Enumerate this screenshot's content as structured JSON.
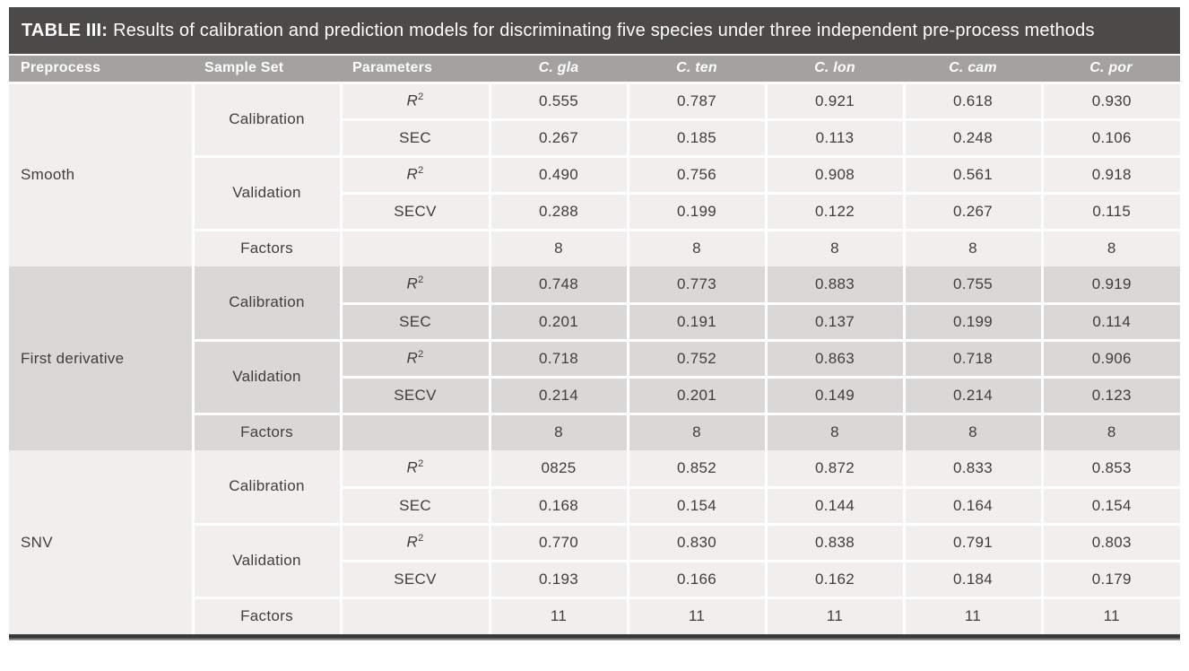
{
  "title": {
    "label": "TABLE III:",
    "text": "Results of calibration and prediction models for discriminating five species under three independent pre-process methods"
  },
  "header": {
    "columns": [
      {
        "label": "Preprocess"
      },
      {
        "label": "Sample Set"
      },
      {
        "label": "Parameters"
      },
      {
        "label": "C. gla"
      },
      {
        "label": "C. ten"
      },
      {
        "label": "C. lon"
      },
      {
        "label": "C. cam"
      },
      {
        "label": "C. por"
      }
    ]
  },
  "labels": {
    "calibration": "Calibration",
    "validation": "Validation",
    "factors": "Factors",
    "r_base": "R",
    "r_exp": "2",
    "sec": "SEC",
    "secv": "SECV"
  },
  "groups": [
    {
      "name": "Smooth",
      "shade": "light",
      "calibration": {
        "r2": [
          "0.555",
          "0.787",
          "0.921",
          "0.618",
          "0.930"
        ],
        "sec": [
          "0.267",
          "0.185",
          "0.113",
          "0.248",
          "0.106"
        ]
      },
      "validation": {
        "r2": [
          "0.490",
          "0.756",
          "0.908",
          "0.561",
          "0.918"
        ],
        "secv": [
          "0.288",
          "0.199",
          "0.122",
          "0.267",
          "0.115"
        ]
      },
      "factors": [
        "8",
        "8",
        "8",
        "8",
        "8"
      ]
    },
    {
      "name": "First derivative",
      "shade": "dark",
      "calibration": {
        "r2": [
          "0.748",
          "0.773",
          "0.883",
          "0.755",
          "0.919"
        ],
        "sec": [
          "0.201",
          "0.191",
          "0.137",
          "0.199",
          "0.114"
        ]
      },
      "validation": {
        "r2": [
          "0.718",
          "0.752",
          "0.863",
          "0.718",
          "0.906"
        ],
        "secv": [
          "0.214",
          "0.201",
          "0.149",
          "0.214",
          "0.123"
        ]
      },
      "factors": [
        "8",
        "8",
        "8",
        "8",
        "8"
      ]
    },
    {
      "name": "SNV",
      "shade": "light",
      "calibration": {
        "r2": [
          "0825",
          "0.852",
          "0.872",
          "0.833",
          "0.853"
        ],
        "sec": [
          "0.168",
          "0.154",
          "0.144",
          "0.164",
          "0.154"
        ]
      },
      "validation": {
        "r2": [
          "0.770",
          "0.830",
          "0.838",
          "0.791",
          "0.803"
        ],
        "secv": [
          "0.193",
          "0.166",
          "0.162",
          "0.184",
          "0.179"
        ]
      },
      "factors": [
        "11",
        "11",
        "11",
        "11",
        "11"
      ]
    }
  ],
  "colors": {
    "title_bg": "#4b4a48",
    "header_bg": "#a3a2a0",
    "group_light": "#f0efed",
    "group_dark": "#d9d8d6",
    "text_dark": "#3f3e3c",
    "text_light": "#ffffff"
  }
}
